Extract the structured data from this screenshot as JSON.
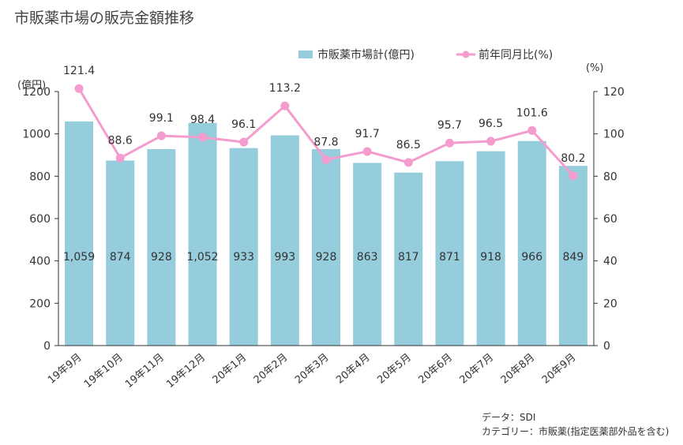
{
  "title": "市販薬市場の販売金額推移",
  "legend": {
    "bar": "市販薬市場計(億円)",
    "line": "前年同月比(%)"
  },
  "units": {
    "left": "(億円)",
    "right": "(%)"
  },
  "footer": {
    "source": "データ：SDI",
    "category": "カテゴリー：市販薬(指定医薬部外品を含む)"
  },
  "colors": {
    "bar": "#96cddc",
    "line": "#f49cce",
    "axis": "#333333"
  },
  "chart_data": {
    "type": "bar",
    "categories": [
      "19年9月",
      "19年10月",
      "19年11月",
      "19年12月",
      "20年1月",
      "20年2月",
      "20年3月",
      "20年4月",
      "20年5月",
      "20年6月",
      "20年7月",
      "20年8月",
      "20年9月"
    ],
    "series": [
      {
        "name": "市販薬市場計(億円)",
        "type": "bar",
        "axis": "left",
        "values": [
          1059,
          874,
          928,
          1052,
          933,
          993,
          928,
          863,
          817,
          871,
          918,
          966,
          849
        ],
        "labels": [
          "1,059",
          "874",
          "928",
          "1,052",
          "933",
          "993",
          "928",
          "863",
          "817",
          "871",
          "918",
          "966",
          "849"
        ]
      },
      {
        "name": "前年同月比(%)",
        "type": "line",
        "axis": "right",
        "values": [
          121.4,
          88.6,
          99.1,
          98.4,
          96.1,
          113.2,
          87.8,
          91.7,
          86.5,
          95.7,
          96.5,
          101.6,
          80.2
        ],
        "labels": [
          "121.4",
          "88.6",
          "99.1",
          "98.4",
          "96.1",
          "113.2",
          "87.8",
          "91.7",
          "86.5",
          "95.7",
          "96.5",
          "101.6",
          "80.2"
        ]
      }
    ],
    "y_left": {
      "ylim": [
        0,
        1200
      ],
      "ticks": [
        0,
        200,
        400,
        600,
        800,
        1000,
        1200
      ]
    },
    "y_right": {
      "ylim": [
        0,
        120
      ],
      "ticks": [
        0,
        20,
        40,
        60,
        80,
        100,
        120
      ]
    },
    "grid": false,
    "legend_position": "top-right"
  }
}
